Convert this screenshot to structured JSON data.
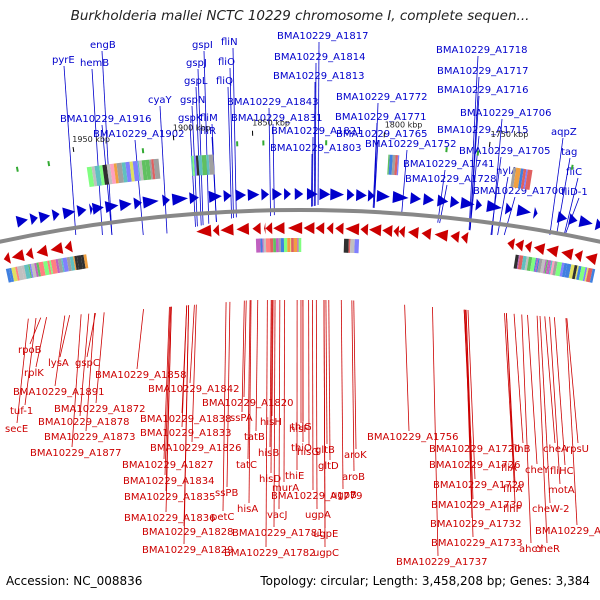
{
  "title": "Burkholderia mallei NCTC 10229 chromosome I, complete sequen...",
  "footer": {
    "accession": "Accession: NC_008836",
    "summary": "Topology: circular; Length: 3,458,208 bp; Genes: 3,384"
  },
  "colors": {
    "forward": "#0000cc",
    "reverse": "#cc0000",
    "backbone": "#888888",
    "rna": "#33aa33"
  },
  "ticks": [
    "1950 kbp",
    "1900 kbp",
    "1850 kbp",
    "1800 kbp",
    "1750 kbp"
  ],
  "top_labels": [
    "pyrE",
    "hemB",
    "engB",
    "gspI",
    "gspJ",
    "gspL",
    "gspN",
    "gspK",
    "fliN",
    "fliO",
    "fliQ",
    "cyaY",
    "fliM",
    "fliR",
    "BMA10229_A1916",
    "BMA10229_A1902",
    "BMA10229_A1843",
    "BMA10229_A1817",
    "BMA10229_A1814",
    "BMA10229_A1813",
    "BMA10229_A1831",
    "BMA10229_A1821",
    "BMA10229_A1803",
    "BMA10229_A1772",
    "BMA10229_A1771",
    "BMA10229_A1765",
    "BMA10229_A1752",
    "BMA10229_A1741",
    "BMA10229_A1728",
    "BMA10229_A1718",
    "BMA10229_A1717",
    "BMA10229_A1716",
    "BMA10229_A1706",
    "BMA10229_A1715",
    "BMA10229_A1705",
    "nylA",
    "BMA10229_A1700",
    "aqpZ",
    "tag",
    "fliC",
    "fliD-1"
  ],
  "bottom_labels": [
    "rpoB",
    "rplK",
    "lysA",
    "gspC",
    "BMA10229_A1891",
    "tuf-1",
    "secE",
    "BMA10229_A1872",
    "BMA10229_A1878",
    "BMA10229_A1873",
    "BMA10229_A1877",
    "BMA10229_A1858",
    "BMA10229_A1842",
    "BMA10229_A1838",
    "BMA10229_A1833",
    "BMA10229_A1826",
    "BMA10229_A1827",
    "BMA10229_A1834",
    "BMA10229_A1835",
    "BMA10229_A1836",
    "BMA10229_A1828",
    "BMA10229_A1829",
    "BMA10229_A1820",
    "ssPA",
    "hisH",
    "tatB",
    "hisB",
    "tatC",
    "hisD",
    "hisA",
    "ssPB",
    "petC",
    "hisF",
    "hisG",
    "thiG",
    "thiO",
    "thiE",
    "murA",
    "gltD",
    "gltB",
    "BMA10229_A1779",
    "vacJ",
    "BMA10229_A1781",
    "BMA10229_A1782",
    "ugpC",
    "ugpE",
    "ugpA",
    "ugpB",
    "aroB",
    "aroK",
    "BMA10229_A1756",
    "BMA10229_A1720",
    "BMA10229_A1726",
    "BMA10229_A1729",
    "BMA10229_A1730",
    "BMA10229_A1732",
    "BMA10229_A1733",
    "BMA10229_A1737",
    "flhB",
    "fliA",
    "cheA",
    "cheY",
    "rpsU",
    "flhA",
    "fliHC",
    "motA",
    "flhF",
    "cheW-2",
    "ahcY",
    "cheR",
    "BMA10229_A1686"
  ]
}
